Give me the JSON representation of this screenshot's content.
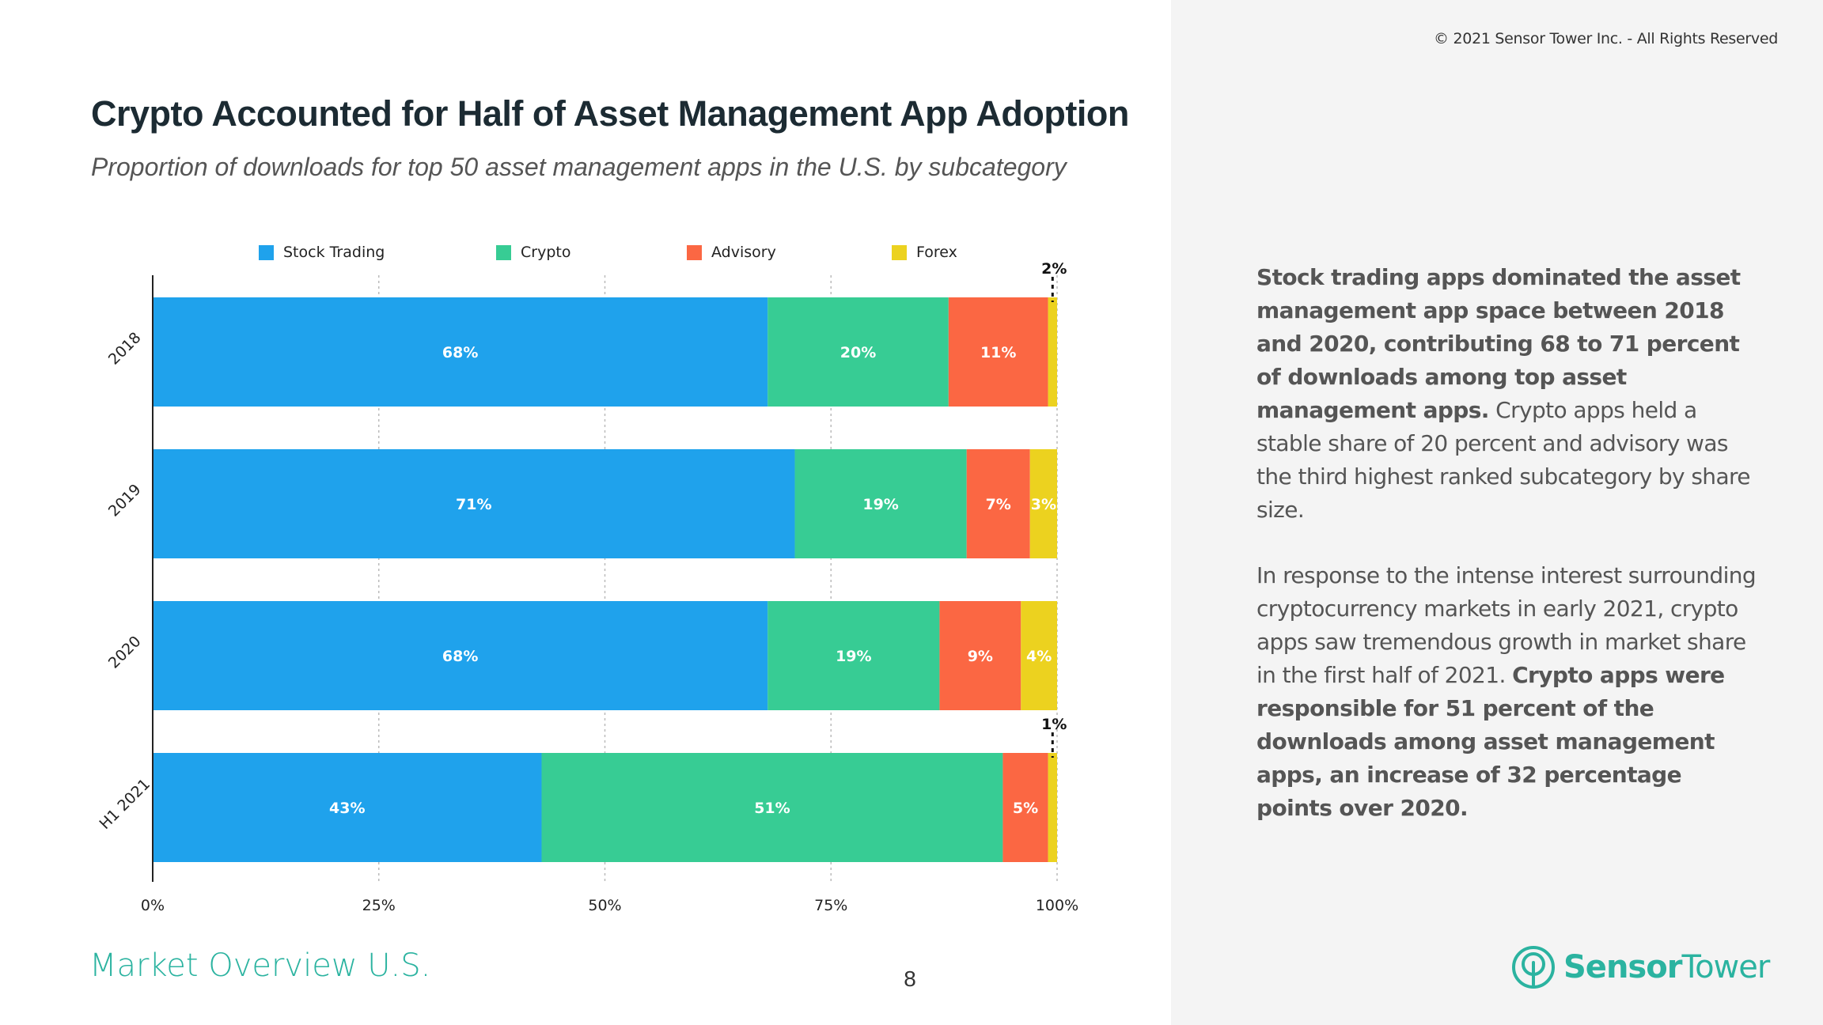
{
  "header": {
    "copyright": "© 2021 Sensor Tower Inc. - All Rights Reserved",
    "title": "Crypto Accounted for Half of Asset Management App Adoption",
    "subtitle": "Proportion of downloads for top 50 asset management apps in the U.S. by subcategory"
  },
  "colors": {
    "stock_trading": "#1fa2ec",
    "crypto": "#37cc94",
    "advisory": "#fb6743",
    "forex": "#ecd21f",
    "brand": "#2bb3a0"
  },
  "chart_data": {
    "type": "bar",
    "orientation": "horizontal",
    "stacked": true,
    "categories": [
      "2018",
      "2019",
      "2020",
      "H1 2021"
    ],
    "series": [
      {
        "name": "Stock Trading",
        "values": [
          68,
          71,
          68,
          43
        ],
        "labels": [
          "68%",
          "71%",
          "68%",
          "43%"
        ]
      },
      {
        "name": "Crypto",
        "values": [
          20,
          19,
          19,
          51
        ],
        "labels": [
          "20%",
          "19%",
          "19%",
          "51%"
        ]
      },
      {
        "name": "Advisory",
        "values": [
          11,
          7,
          9,
          5
        ],
        "labels": [
          "11%",
          "7%",
          "9%",
          "5%"
        ]
      },
      {
        "name": "Forex",
        "values": [
          2,
          3,
          4,
          1
        ],
        "labels": [
          "2%",
          "3%",
          "4%",
          "1%"
        ]
      }
    ],
    "xlim": [
      0,
      100
    ],
    "x_ticks": [
      "0%",
      "25%",
      "50%",
      "75%",
      "100%"
    ],
    "grid": true,
    "legend_position": "top"
  },
  "sidebar": {
    "para1_bold": "Stock trading apps dominated the asset management app space between 2018 and 2020, contributing 68 to 71 percent of downloads among top asset management apps.",
    "para1_rest": " Crypto apps held a stable share of 20 percent and advisory was the third highest ranked subcategory by share size.",
    "para2_rest": "In response to the intense interest surrounding cryptocurrency markets in early 2021, crypto apps saw tremendous growth in market share in the first half of 2021. ",
    "para2_bold": "Crypto apps were responsible for 51 percent of the downloads among asset management apps, an increase of 32 percentage points over 2020."
  },
  "footer": {
    "section": "Market Overview U.S.",
    "page": "8",
    "brand_first": "Sensor",
    "brand_second": "Tower",
    "brand_icon": "sensor-tower-logo-icon"
  }
}
